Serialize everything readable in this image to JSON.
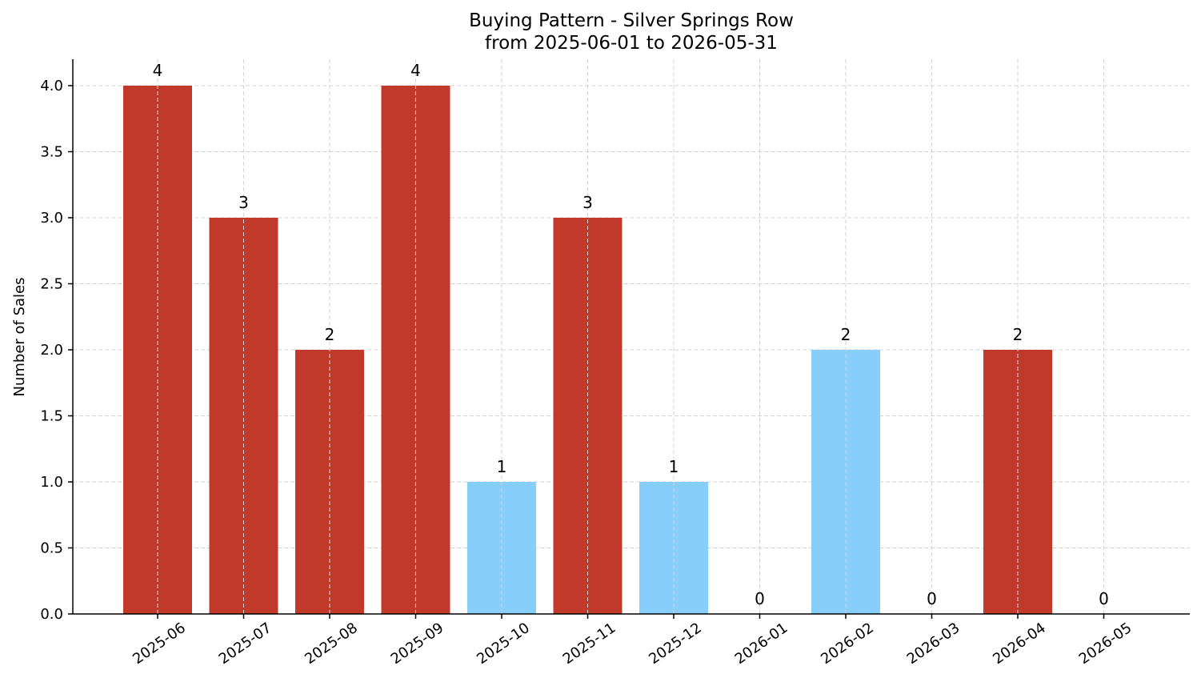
{
  "chart_data": {
    "type": "bar",
    "title": "Buying Pattern - Silver Springs Row",
    "subtitle": "from 2025-06-01 to 2026-05-31",
    "xlabel": "",
    "ylabel": "Number of Sales",
    "categories": [
      "2025-06",
      "2025-07",
      "2025-08",
      "2025-09",
      "2025-10",
      "2025-11",
      "2025-12",
      "2026-01",
      "2026-02",
      "2026-03",
      "2026-04",
      "2026-05"
    ],
    "values": [
      4,
      3,
      2,
      4,
      1,
      3,
      1,
      0,
      2,
      0,
      2,
      0
    ],
    "bar_colors": [
      "#c0392b",
      "#c0392b",
      "#c0392b",
      "#c0392b",
      "#87cefa",
      "#c0392b",
      "#87cefa",
      "#c0392b",
      "#87cefa",
      "#c0392b",
      "#c0392b",
      "#c0392b"
    ],
    "data_labels": [
      "4",
      "3",
      "2",
      "4",
      "1",
      "3",
      "1",
      "0",
      "2",
      "0",
      "2",
      "0"
    ],
    "ylim": [
      0,
      4.2
    ],
    "yticks": [
      "0.0",
      "0.5",
      "1.0",
      "1.5",
      "2.0",
      "2.5",
      "3.0",
      "3.5",
      "4.0"
    ],
    "grid": true,
    "legend": "none"
  }
}
